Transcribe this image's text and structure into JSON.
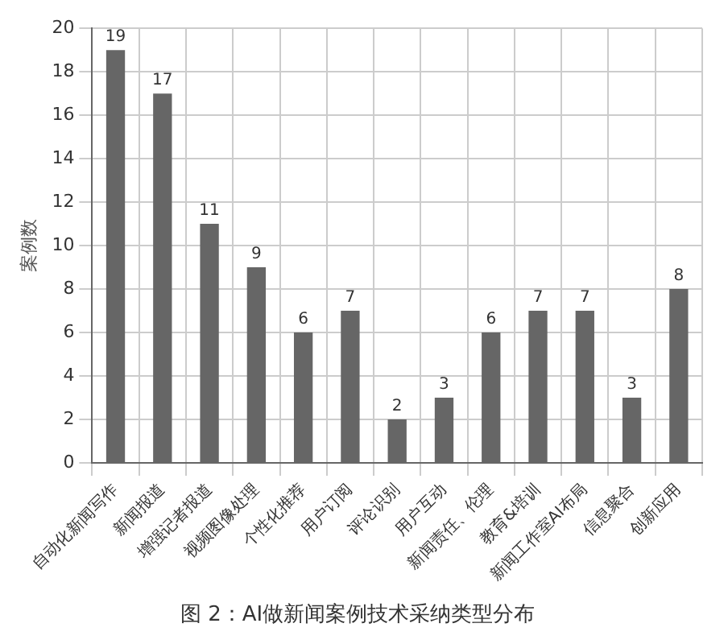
{
  "chart_data": {
    "type": "bar",
    "title": "图 2：AI做新闻案例技术采纳类型分布",
    "ylabel": "案例数",
    "categories": [
      "自动化新闻写作",
      "新闻报道",
      "增强记者报道",
      "视频图像处理",
      "个性化推荐",
      "用户订阅",
      "评论识别",
      "用户互动",
      "新闻责任、伦理",
      "教育&培训",
      "新闻工作室AI布局",
      "信息聚合",
      "创新应用"
    ],
    "values": [
      19,
      17,
      11,
      9,
      6,
      7,
      2,
      3,
      6,
      7,
      7,
      3,
      8
    ],
    "color": "#666666",
    "ylim": [
      0,
      20
    ],
    "yticks": [
      0,
      2,
      4,
      6,
      8,
      10,
      12,
      14,
      16,
      18,
      20
    ],
    "grid": true,
    "data_labels": true
  }
}
